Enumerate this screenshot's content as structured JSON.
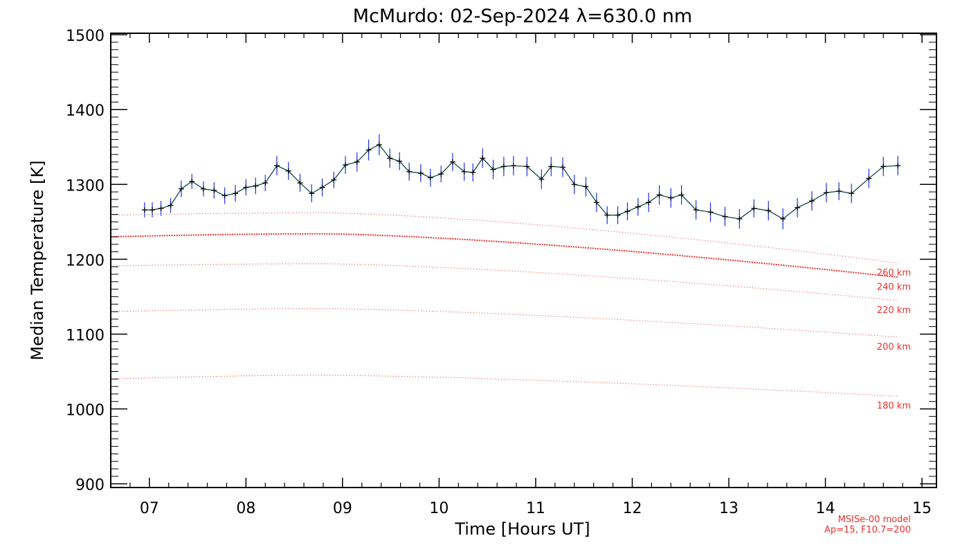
{
  "chart_data": {
    "type": "line",
    "title": "McMurdo: 02-Sep-2024 λ=630.0 nm",
    "xlabel": "Time [Hours UT]",
    "ylabel": "Median Temperature [K]",
    "xlim": [
      6.6,
      15.15
    ],
    "ylim": [
      895,
      1502
    ],
    "x_ticks": [
      7,
      8,
      9,
      10,
      11,
      12,
      13,
      14,
      15
    ],
    "x_tick_labels": [
      "07",
      "08",
      "09",
      "10",
      "11",
      "12",
      "13",
      "14",
      "15"
    ],
    "y_ticks": [
      900,
      1000,
      1100,
      1200,
      1300,
      1400,
      1500
    ],
    "y_tick_labels": [
      "900",
      "1000",
      "1100",
      "1200",
      "1300",
      "1400",
      "1500"
    ],
    "grid": false,
    "colors": {
      "data_line": "#003a3a",
      "error_bar": "#1a2ee8",
      "point_marker": "#000000",
      "model": "#e83030"
    },
    "series": [
      {
        "x": [
          6.95,
          7.03,
          7.12,
          7.22,
          7.33,
          7.44,
          7.56,
          7.67,
          7.78,
          7.89,
          8.0,
          8.1,
          8.2,
          8.32,
          8.44,
          8.56,
          8.68,
          8.79,
          8.91,
          9.03,
          9.15,
          9.27,
          9.38,
          9.49,
          9.59,
          9.69,
          9.81,
          9.91,
          10.02,
          10.14,
          10.26,
          10.35,
          10.45,
          10.56,
          10.67,
          10.77,
          10.91,
          11.06,
          11.16,
          11.28,
          11.4,
          11.52,
          11.63,
          11.74,
          11.85,
          11.95,
          12.06,
          12.17,
          12.28,
          12.4,
          12.51,
          12.66,
          12.81,
          12.96,
          13.11,
          13.26,
          13.41,
          13.56,
          13.71,
          13.86,
          14.01,
          14.14,
          14.27,
          14.45,
          14.6,
          14.75
        ],
        "y": [
          1266,
          1266,
          1268,
          1272,
          1294,
          1304,
          1294,
          1292,
          1285,
          1288,
          1296,
          1298,
          1302,
          1325,
          1318,
          1302,
          1288,
          1296,
          1306,
          1326,
          1330,
          1346,
          1353,
          1335,
          1331,
          1317,
          1315,
          1309,
          1314,
          1330,
          1317,
          1316,
          1335,
          1320,
          1324,
          1325,
          1324,
          1307,
          1324,
          1323,
          1300,
          1297,
          1276,
          1259,
          1259,
          1264,
          1270,
          1276,
          1286,
          1282,
          1286,
          1266,
          1263,
          1257,
          1254,
          1268,
          1265,
          1254,
          1269,
          1278,
          1289,
          1291,
          1288,
          1308,
          1324,
          1325
        ],
        "error": [
          10,
          10,
          10,
          10,
          11,
          10,
          10,
          11,
          11,
          11,
          11,
          11,
          11,
          13,
          12,
          12,
          12,
          12,
          11,
          12,
          13,
          14,
          14,
          13,
          12,
          12,
          12,
          12,
          11,
          12,
          12,
          12,
          13,
          13,
          13,
          13,
          13,
          13,
          13,
          13,
          13,
          13,
          13,
          12,
          12,
          12,
          12,
          13,
          13,
          13,
          13,
          13,
          13,
          13,
          13,
          12,
          13,
          14,
          13,
          13,
          13,
          12,
          13,
          13,
          13,
          13
        ]
      }
    ],
    "model_curves": [
      {
        "label": "260 km",
        "y_start": 1259,
        "y_peak": 1262,
        "y_end": 1195,
        "dense": false
      },
      {
        "label": "240 km",
        "y_start": 1230,
        "y_peak": 1234,
        "y_end": 1176,
        "dense": true
      },
      {
        "label": "220 km",
        "y_start": 1191,
        "y_peak": 1194,
        "y_end": 1145,
        "dense": false
      },
      {
        "label": "200 km",
        "y_start": 1130,
        "y_peak": 1134,
        "y_end": 1096,
        "dense": false
      },
      {
        "label": "180 km",
        "y_start": 1040,
        "y_peak": 1045,
        "y_end": 1017,
        "dense": false
      }
    ],
    "model_note_line1": "MSISe-00 model",
    "model_note_line2": "Ap=15, F10.7=200"
  }
}
